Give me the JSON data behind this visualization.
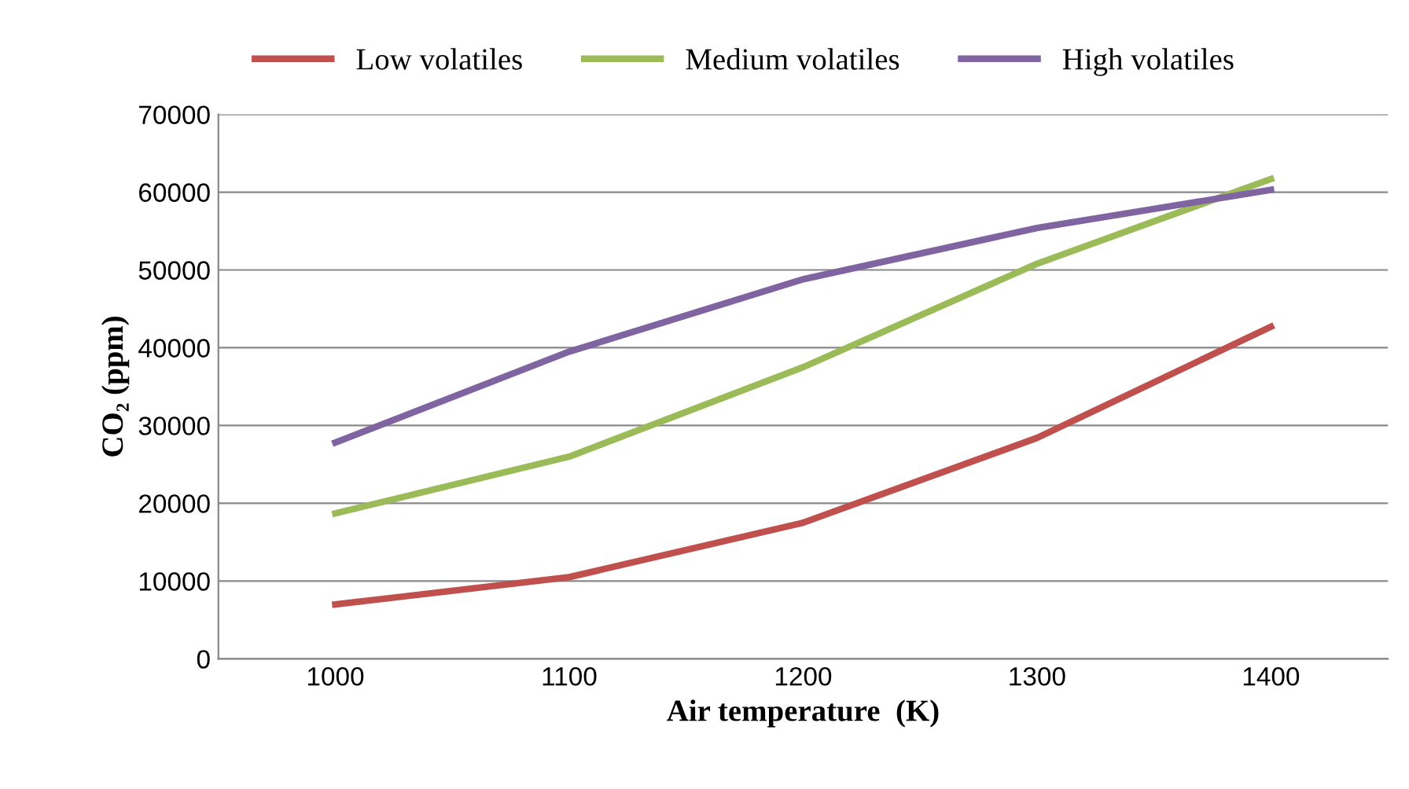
{
  "chart_data": {
    "type": "line",
    "xlabel": "Air temperature  (K)",
    "ylabel": "CO₂ (ppm)",
    "categories": [
      "1000",
      "1100",
      "1200",
      "1300",
      "1400"
    ],
    "series": [
      {
        "name": "Low volatiles",
        "color": "#c0504d",
        "values": [
          7000,
          10500,
          17500,
          28400,
          42700
        ]
      },
      {
        "name": "Medium volatiles",
        "color": "#9bbb59",
        "values": [
          18700,
          26000,
          37500,
          50800,
          61700
        ]
      },
      {
        "name": "High volatiles",
        "color": "#8064a2",
        "values": [
          27800,
          39500,
          48800,
          55400,
          60300
        ]
      }
    ],
    "ylim": [
      0,
      70000
    ],
    "yticks": [
      0,
      10000,
      20000,
      30000,
      40000,
      50000,
      60000,
      70000
    ],
    "grid": "y",
    "legend": "top",
    "marker": "none",
    "line_style": "solid"
  }
}
